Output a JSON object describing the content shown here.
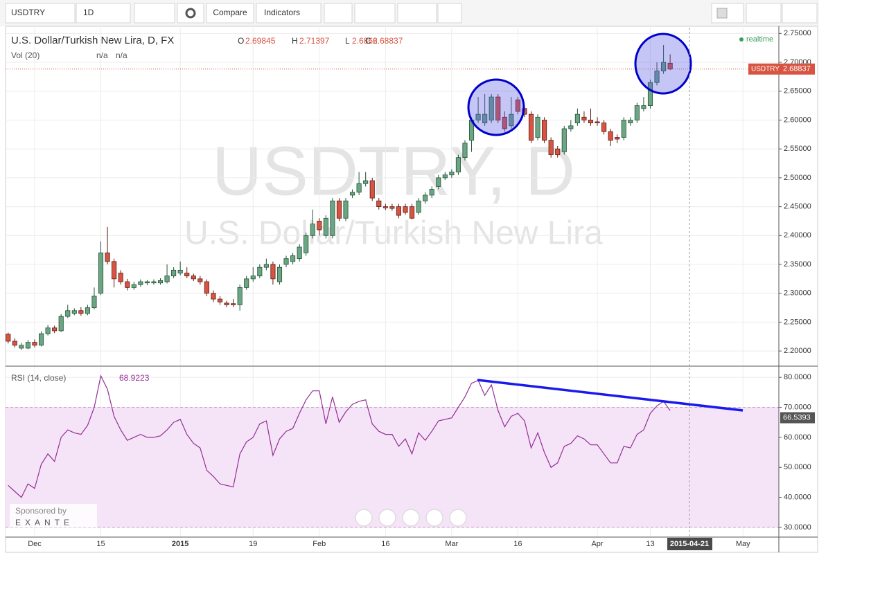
{
  "toolbar": {
    "symbol": "USDTRY",
    "interval": "1D",
    "buttons": [
      "Compare",
      "Indicators"
    ]
  },
  "sponsor": {
    "text": "Sponsored by",
    "brand": "EXANTE"
  },
  "chart_data": [
    {
      "type": "candlestick",
      "title": "U.S. Dollar/Turkish New Lira, D, FX",
      "watermark": [
        "USDTRY, D",
        "U.S. Dollar/Turkish New Lira"
      ],
      "ohlc_keys": [
        "O",
        "H",
        "L",
        "C"
      ],
      "volume": {
        "label": "Vol (20)",
        "values": [
          "n/a",
          "n/a"
        ]
      },
      "status": "realtime",
      "crosshair": "2015-04-21",
      "up_color": "#6ba583",
      "down_color": "#d75442",
      "grid": true,
      "categories": [
        null,
        null,
        null,
        null,
        "Dec",
        null,
        null,
        null,
        null,
        null,
        null,
        null,
        null,
        null,
        "15",
        null,
        null,
        null,
        null,
        null,
        null,
        null,
        null,
        null,
        null,
        null,
        "2015",
        null,
        null,
        null,
        null,
        null,
        null,
        null,
        null,
        null,
        null,
        "19",
        null,
        null,
        null,
        null,
        null,
        null,
        null,
        null,
        null,
        "Feb",
        null,
        null,
        null,
        null,
        null,
        null,
        null,
        null,
        null,
        "16",
        null,
        null,
        null,
        null,
        null,
        null,
        null,
        null,
        null,
        "Mar",
        null,
        null,
        null,
        null,
        null,
        null,
        null,
        null,
        null,
        "16",
        null,
        null,
        null,
        null,
        null,
        null,
        null,
        null,
        null,
        null,
        null,
        "Apr",
        null,
        null,
        null,
        null,
        null,
        null,
        null,
        "13",
        null,
        null,
        null,
        null,
        null,
        null,
        null,
        null,
        null,
        null,
        null,
        null,
        null,
        "May"
      ],
      "open": [
        2.229,
        2.217,
        2.205,
        2.205,
        2.215,
        2.21,
        2.23,
        2.24,
        2.235,
        2.26,
        2.265,
        2.27,
        2.265,
        2.275,
        2.3,
        2.37,
        2.355,
        2.335,
        2.32,
        2.31,
        2.315,
        2.318,
        2.318,
        2.318,
        2.32,
        2.33,
        2.335,
        2.335,
        2.33,
        2.325,
        2.32,
        2.3,
        2.29,
        2.283,
        2.282,
        2.28,
        2.31,
        2.325,
        2.33,
        2.345,
        2.35,
        2.32,
        2.35,
        2.355,
        2.36,
        2.37,
        2.4,
        2.425,
        2.4,
        2.4,
        2.46,
        2.43,
        2.47,
        2.475,
        2.49,
        2.495,
        2.46,
        2.45,
        2.45,
        2.45,
        2.45,
        2.45,
        2.44,
        2.46,
        2.47,
        2.485,
        2.5,
        2.505,
        2.51,
        2.535,
        2.565,
        2.6,
        2.595,
        2.6,
        2.64,
        2.605,
        2.59,
        2.635,
        2.62,
        2.61,
        2.57,
        2.6,
        2.565,
        2.55,
        2.545,
        2.585,
        2.595,
        2.605,
        2.6,
        2.597,
        2.595,
        2.58,
        2.57,
        2.57,
        2.595,
        2.6,
        2.62,
        2.625,
        2.665,
        2.685,
        2.69845,
        null,
        null,
        null,
        null,
        null,
        null,
        null,
        null,
        null,
        null,
        null
      ],
      "high": [
        2.232,
        2.222,
        2.214,
        2.219,
        2.22,
        2.234,
        2.245,
        2.244,
        2.264,
        2.28,
        2.274,
        2.276,
        2.28,
        2.31,
        2.39,
        2.415,
        2.36,
        2.34,
        2.325,
        2.32,
        2.324,
        2.323,
        2.324,
        2.326,
        2.35,
        2.345,
        2.355,
        2.345,
        2.334,
        2.33,
        2.324,
        2.305,
        2.295,
        2.287,
        2.29,
        2.315,
        2.33,
        2.345,
        2.35,
        2.36,
        2.355,
        2.35,
        2.365,
        2.37,
        2.385,
        2.405,
        2.445,
        2.43,
        2.435,
        2.465,
        2.465,
        2.465,
        2.48,
        2.51,
        2.51,
        2.5,
        2.465,
        2.455,
        2.455,
        2.455,
        2.455,
        2.455,
        2.465,
        2.475,
        2.485,
        2.505,
        2.51,
        2.515,
        2.54,
        2.565,
        2.605,
        2.64,
        2.645,
        2.645,
        2.645,
        2.615,
        2.64,
        2.64,
        2.625,
        2.615,
        2.61,
        2.605,
        2.57,
        2.555,
        2.59,
        2.6,
        2.62,
        2.615,
        2.62,
        2.605,
        2.6,
        2.585,
        2.575,
        2.605,
        2.605,
        2.63,
        2.64,
        2.67,
        2.7,
        2.73,
        2.71397,
        null,
        null,
        null,
        null,
        null,
        null,
        null,
        null,
        null,
        null,
        null
      ],
      "low": [
        2.213,
        2.206,
        2.202,
        2.203,
        2.206,
        2.208,
        2.227,
        2.231,
        2.233,
        2.257,
        2.262,
        2.261,
        2.262,
        2.272,
        2.297,
        2.35,
        2.31,
        2.315,
        2.305,
        2.306,
        2.311,
        2.314,
        2.315,
        2.315,
        2.317,
        2.326,
        2.331,
        2.326,
        2.321,
        2.315,
        2.295,
        2.285,
        2.28,
        2.276,
        2.276,
        2.27,
        2.306,
        2.32,
        2.326,
        2.34,
        2.315,
        2.315,
        2.345,
        2.35,
        2.355,
        2.365,
        2.395,
        2.4,
        2.395,
        2.395,
        2.425,
        2.425,
        2.465,
        2.47,
        2.485,
        2.46,
        2.445,
        2.444,
        2.443,
        2.43,
        2.436,
        2.428,
        2.436,
        2.455,
        2.465,
        2.48,
        2.496,
        2.5,
        2.505,
        2.53,
        2.545,
        2.595,
        2.59,
        2.595,
        2.595,
        2.58,
        2.585,
        2.61,
        2.605,
        2.56,
        2.565,
        2.56,
        2.535,
        2.535,
        2.54,
        2.58,
        2.59,
        2.595,
        2.59,
        2.59,
        2.575,
        2.555,
        2.56,
        2.565,
        2.59,
        2.595,
        2.615,
        2.62,
        2.66,
        2.68,
        2.6866,
        null,
        null,
        null,
        null,
        null,
        null,
        null,
        null,
        null,
        null,
        null
      ],
      "close": [
        2.217,
        2.21,
        2.21,
        2.215,
        2.21,
        2.23,
        2.24,
        2.235,
        2.26,
        2.27,
        2.27,
        2.265,
        2.275,
        2.295,
        2.37,
        2.355,
        2.325,
        2.32,
        2.31,
        2.315,
        2.32,
        2.32,
        2.32,
        2.322,
        2.33,
        2.34,
        2.34,
        2.33,
        2.325,
        2.32,
        2.3,
        2.29,
        2.285,
        2.28,
        2.28,
        2.31,
        2.325,
        2.33,
        2.345,
        2.35,
        2.325,
        2.345,
        2.36,
        2.365,
        2.38,
        2.4,
        2.42,
        2.41,
        2.43,
        2.46,
        2.43,
        2.46,
        2.475,
        2.49,
        2.495,
        2.465,
        2.45,
        2.448,
        2.447,
        2.435,
        2.44,
        2.43,
        2.46,
        2.47,
        2.48,
        2.5,
        2.505,
        2.51,
        2.535,
        2.56,
        2.6,
        2.61,
        2.61,
        2.64,
        2.6,
        2.585,
        2.61,
        2.615,
        2.61,
        2.565,
        2.605,
        2.565,
        2.54,
        2.54,
        2.585,
        2.59,
        2.61,
        2.6,
        2.595,
        2.595,
        2.58,
        2.565,
        2.567,
        2.6,
        2.6,
        2.625,
        2.625,
        2.665,
        2.685,
        2.7,
        2.68837,
        null,
        null,
        null,
        null,
        null,
        null,
        null,
        null,
        null,
        null,
        null
      ],
      "ylim": [
        2.175,
        2.76
      ],
      "yticks": [
        {
          "value": 2.2,
          "label": "2.20000"
        },
        {
          "value": 2.25,
          "label": "2.25000"
        },
        {
          "value": 2.3,
          "label": "2.30000"
        },
        {
          "value": 2.35,
          "label": "2.35000"
        },
        {
          "value": 2.4,
          "label": "2.40000"
        },
        {
          "value": 2.45,
          "label": "2.45000"
        },
        {
          "value": 2.5,
          "label": "2.50000"
        },
        {
          "value": 2.55,
          "label": "2.55000"
        },
        {
          "value": 2.6,
          "label": "2.60000"
        },
        {
          "value": 2.65,
          "label": "2.65000"
        },
        {
          "value": 2.7,
          "label": "2.70000"
        },
        {
          "value": 2.75,
          "label": "2.75000"
        }
      ]
    },
    {
      "type": "line",
      "title": "RSI (14, close)",
      "color": "#932f93",
      "band": [
        30,
        70
      ],
      "marker_value": 66.5393,
      "values": [
        44,
        42,
        40,
        44.5,
        43,
        51,
        54.5,
        52,
        60,
        62.5,
        61.5,
        61,
        64,
        70,
        80.5,
        76,
        67,
        62.5,
        59,
        60,
        61,
        60,
        60,
        60.5,
        62.5,
        65,
        66,
        61,
        58,
        56.5,
        49,
        47,
        44.5,
        44,
        43.5,
        54.5,
        58.5,
        60,
        64.5,
        65.5,
        54,
        59.5,
        62,
        63,
        68,
        72.5,
        75.5,
        75.5,
        64.5,
        73.5,
        65,
        68.5,
        71,
        72,
        72.5,
        64.5,
        62,
        61,
        61,
        57,
        59.5,
        54.5,
        61.5,
        59,
        62,
        65.5,
        66,
        66.5,
        70,
        73.5,
        78,
        79,
        74,
        77.5,
        69,
        63.5,
        67,
        68,
        65.5,
        56.5,
        61.5,
        55,
        50,
        51.5,
        57,
        58,
        60.5,
        59.5,
        57.5,
        57.5,
        54.5,
        51.5,
        51.5,
        57,
        56.5,
        61,
        62.5,
        68,
        70.5,
        72,
        68.9223,
        null,
        null,
        null,
        null,
        null,
        null,
        null,
        null,
        null,
        null,
        null
      ],
      "ylim": [
        27,
        83.5
      ],
      "yticks": [
        {
          "value": 30,
          "label": "30.0000"
        },
        {
          "value": 40,
          "label": "40.0000"
        },
        {
          "value": 50,
          "label": "50.0000"
        },
        {
          "value": 60,
          "label": "60.0000"
        },
        {
          "value": 70,
          "label": "70.0000"
        },
        {
          "value": 80,
          "label": "80.0000"
        }
      ]
    }
  ]
}
